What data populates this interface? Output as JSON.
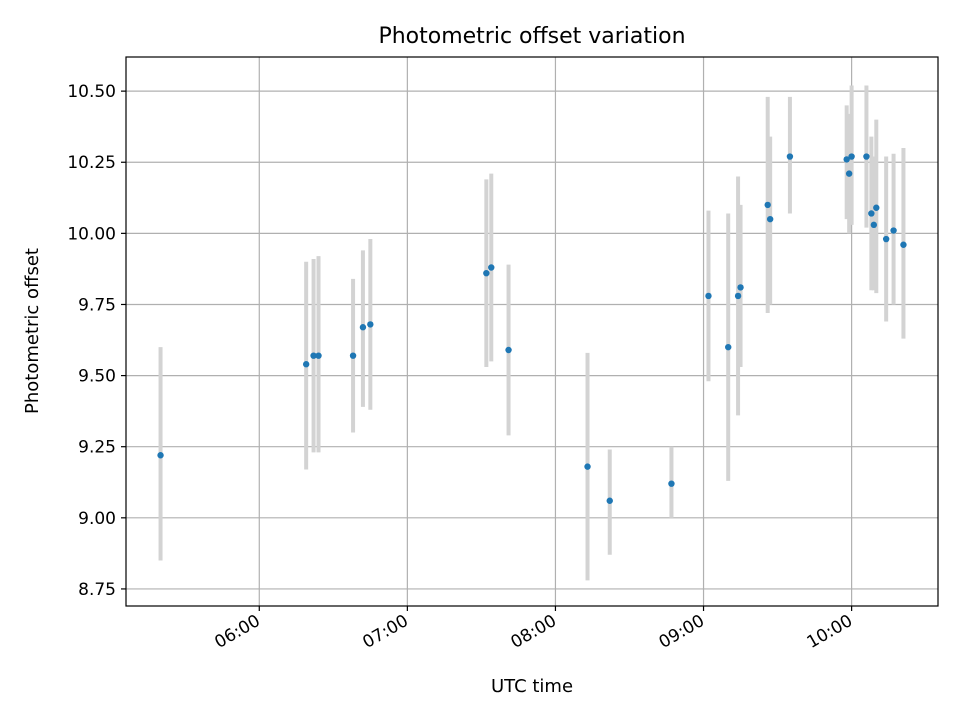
{
  "chart_data": {
    "type": "scatter",
    "title": "Photometric offset variation",
    "xlabel": "UTC time",
    "ylabel": "Photometric offset",
    "x_axis_type": "time",
    "x_tick_labels": [
      "06:00",
      "07:00",
      "08:00",
      "09:00",
      "10:00"
    ],
    "x_tick_values": [
      "06:00",
      "07:00",
      "08:00",
      "09:00",
      "10:00"
    ],
    "xlim": [
      "05:06",
      "10:35"
    ],
    "y_tick_labels": [
      "8.75",
      "9.00",
      "9.25",
      "9.50",
      "9.75",
      "10.00",
      "10.25",
      "10.50"
    ],
    "y_tick_values": [
      8.75,
      9.0,
      9.25,
      9.5,
      9.75,
      10.0,
      10.25,
      10.5
    ],
    "ylim": [
      8.69,
      10.62
    ],
    "grid": true,
    "legend": false,
    "colors": {
      "point": "#1f77b4",
      "errorbar": "#d3d3d3",
      "grid": "#b0b0b0",
      "axes": "#000000"
    },
    "points": [
      {
        "x": "05:20",
        "y": 9.22,
        "ylo": 8.85,
        "yhi": 9.6
      },
      {
        "x": "06:19",
        "y": 9.54,
        "ylo": 9.17,
        "yhi": 9.9
      },
      {
        "x": "06:22",
        "y": 9.57,
        "ylo": 9.23,
        "yhi": 9.91
      },
      {
        "x": "06:24",
        "y": 9.57,
        "ylo": 9.23,
        "yhi": 9.92
      },
      {
        "x": "06:38",
        "y": 9.57,
        "ylo": 9.3,
        "yhi": 9.84
      },
      {
        "x": "06:42",
        "y": 9.67,
        "ylo": 9.39,
        "yhi": 9.94
      },
      {
        "x": "06:45",
        "y": 9.68,
        "ylo": 9.38,
        "yhi": 9.98
      },
      {
        "x": "07:32",
        "y": 9.86,
        "ylo": 9.53,
        "yhi": 10.19
      },
      {
        "x": "07:34",
        "y": 9.88,
        "ylo": 9.55,
        "yhi": 10.21
      },
      {
        "x": "07:41",
        "y": 9.59,
        "ylo": 9.29,
        "yhi": 9.89
      },
      {
        "x": "08:13",
        "y": 9.18,
        "ylo": 8.78,
        "yhi": 9.58
      },
      {
        "x": "08:22",
        "y": 9.06,
        "ylo": 8.87,
        "yhi": 9.24
      },
      {
        "x": "08:47",
        "y": 9.12,
        "ylo": 9.0,
        "yhi": 9.25
      },
      {
        "x": "09:02",
        "y": 9.78,
        "ylo": 9.48,
        "yhi": 10.08
      },
      {
        "x": "09:10",
        "y": 9.6,
        "ylo": 9.13,
        "yhi": 10.07
      },
      {
        "x": "09:14",
        "y": 9.78,
        "ylo": 9.36,
        "yhi": 10.2
      },
      {
        "x": "09:15",
        "y": 9.81,
        "ylo": 9.53,
        "yhi": 10.1
      },
      {
        "x": "09:26",
        "y": 10.1,
        "ylo": 9.72,
        "yhi": 10.48
      },
      {
        "x": "09:27",
        "y": 10.05,
        "ylo": 9.75,
        "yhi": 10.34
      },
      {
        "x": "09:35",
        "y": 10.27,
        "ylo": 10.07,
        "yhi": 10.48
      },
      {
        "x": "09:58",
        "y": 10.26,
        "ylo": 10.05,
        "yhi": 10.45
      },
      {
        "x": "09:59",
        "y": 10.21,
        "ylo": 10.0,
        "yhi": 10.42
      },
      {
        "x": "10:00",
        "y": 10.27,
        "ylo": 10.03,
        "yhi": 10.52
      },
      {
        "x": "10:06",
        "y": 10.27,
        "ylo": 10.02,
        "yhi": 10.52
      },
      {
        "x": "10:08",
        "y": 10.07,
        "ylo": 9.8,
        "yhi": 10.34
      },
      {
        "x": "10:09",
        "y": 10.03,
        "ylo": 9.8,
        "yhi": 10.27
      },
      {
        "x": "10:10",
        "y": 10.09,
        "ylo": 9.79,
        "yhi": 10.4
      },
      {
        "x": "10:14",
        "y": 9.98,
        "ylo": 9.69,
        "yhi": 10.27
      },
      {
        "x": "10:17",
        "y": 10.01,
        "ylo": 9.75,
        "yhi": 10.28
      },
      {
        "x": "10:21",
        "y": 9.96,
        "ylo": 9.63,
        "yhi": 10.3
      }
    ]
  }
}
